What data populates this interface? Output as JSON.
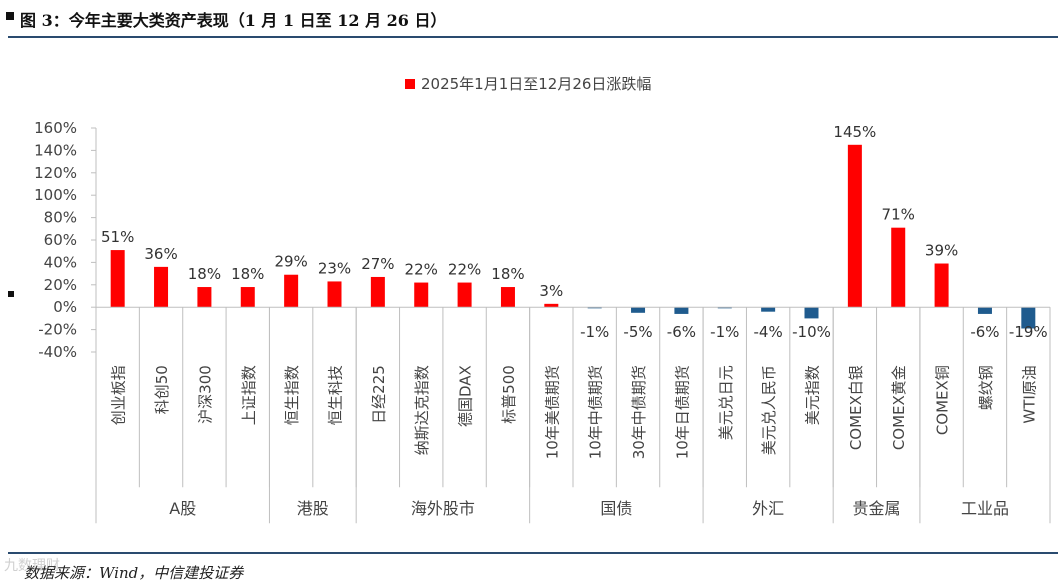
{
  "figure": {
    "title": "图 3：今年主要大类资产表现（1 月 1 日至 12 月 26 日）",
    "source": "数据来源：Wind，中信建投证券",
    "watermark": "九数理财"
  },
  "colors": {
    "positive": "#ff0000",
    "negative": "#1f5b8e",
    "axis": "#bfbfbf",
    "rule": "#2a4b6f"
  },
  "chart_data": {
    "type": "bar",
    "legend": "2025年1月1日至12月26日涨跌幅",
    "legend_position": "top-center",
    "ylim": [
      -40,
      160
    ],
    "yticks": [
      -40,
      -20,
      0,
      20,
      40,
      60,
      80,
      100,
      120,
      140,
      160
    ],
    "ytick_suffix": "%",
    "categories": [
      "创业板指",
      "科创50",
      "沪深300",
      "上证指数",
      "恒生指数",
      "恒生科技",
      "日经225",
      "纳斯达克指数",
      "德国DAX",
      "标普500",
      "10年美债期货",
      "10年中债期货",
      "30年中债期货",
      "10年日债期货",
      "美元兑日元",
      "美元兑人民币",
      "美元指数",
      "COMEX白银",
      "COMEX黄金",
      "COMEX铜",
      "螺纹钢",
      "WTI原油"
    ],
    "values": [
      51,
      36,
      18,
      18,
      29,
      23,
      27,
      22,
      22,
      18,
      3,
      -1,
      -5,
      -6,
      -1,
      -4,
      -10,
      145,
      71,
      39,
      -6,
      -19
    ],
    "data_labels": [
      "51%",
      "36%",
      "18%",
      "18%",
      "29%",
      "23%",
      "27%",
      "22%",
      "22%",
      "18%",
      "3%",
      "-1%",
      "-5%",
      "-6%",
      "-1%",
      "-4%",
      "-10%",
      "145%",
      "71%",
      "39%",
      "-6%",
      "-19%"
    ],
    "groups": [
      {
        "label": "A股",
        "count": 4
      },
      {
        "label": "港股",
        "count": 2
      },
      {
        "label": "海外股市",
        "count": 4
      },
      {
        "label": "国债",
        "count": 4
      },
      {
        "label": "外汇",
        "count": 3
      },
      {
        "label": "贵金属",
        "count": 2
      },
      {
        "label": "工业品",
        "count": 3
      }
    ]
  }
}
